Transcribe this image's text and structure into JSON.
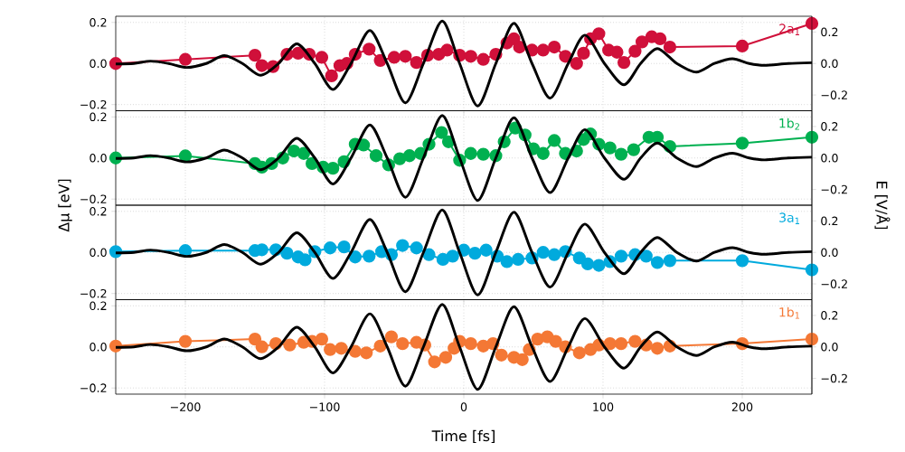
{
  "chart_data": [
    {
      "type": "line",
      "ylabel": "Δμ [eV]",
      "y2label": "E [V/Å]",
      "tick_labels": "y",
      "grid": true,
      "xlim": [
        -250,
        250
      ],
      "xticks": [
        {
          "value": -200,
          "label": null
        },
        {
          "value": -100,
          "label": null
        },
        {
          "value": 0,
          "label": null
        },
        {
          "value": 100,
          "label": null
        },
        {
          "value": 200,
          "label": null
        }
      ],
      "ylim": [
        -0.23,
        0.23
      ],
      "yticks": [
        {
          "value": -0.2,
          "label": "−0.2"
        },
        {
          "value": 0,
          "label": "0.0"
        },
        {
          "value": 0.2,
          "label": "0.2"
        }
      ],
      "y2lim": [
        -0.3,
        0.3
      ],
      "y2ticks": [
        {
          "value": -0.2,
          "label": "−0.2"
        },
        {
          "value": 0,
          "label": "0.0"
        },
        {
          "value": 0.2,
          "label": "0.2"
        }
      ],
      "series": [
        {
          "name": "2a$_{1}$",
          "color": "#d0103a",
          "marker": "circle",
          "x": [
            -250,
            -200,
            -150,
            -145,
            -137,
            -127,
            -119,
            -111,
            -102,
            -95,
            -89,
            -84,
            -78,
            -68,
            -60,
            -50,
            -42,
            -34,
            -26,
            -18,
            -12,
            -3,
            5,
            14,
            23,
            31,
            36,
            40,
            49,
            57,
            65,
            73,
            81,
            86,
            91,
            97,
            104,
            110,
            115,
            123,
            128,
            135,
            141,
            148,
            200,
            250
          ],
          "values": [
            0.0,
            0.02,
            0.04,
            -0.01,
            -0.015,
            0.045,
            0.05,
            0.045,
            0.03,
            -0.06,
            -0.01,
            0.0,
            0.045,
            0.07,
            0.015,
            0.03,
            0.035,
            0.005,
            0.04,
            0.045,
            0.065,
            0.04,
            0.035,
            0.02,
            0.045,
            0.1,
            0.12,
            0.08,
            0.065,
            0.065,
            0.08,
            0.035,
            0.0,
            0.05,
            0.12,
            0.145,
            0.065,
            0.055,
            0.005,
            0.06,
            0.105,
            0.13,
            0.12,
            0.08,
            0.085,
            0.195
          ]
        },
        {
          "color": "#000000",
          "marker": "none",
          "axis": "y2",
          "x": [
            -250,
            -237,
            -225,
            -212,
            -199,
            -185,
            -172,
            -159,
            -146,
            -133,
            -120,
            -107,
            -94,
            -81,
            -67.5,
            -55,
            -42,
            -29,
            -15.5,
            -3,
            10,
            23,
            36,
            49,
            62,
            75,
            87,
            101,
            115,
            127,
            139,
            153,
            167,
            180,
            193,
            205,
            216,
            233,
            250
          ],
          "values": [
            -0.003,
            0,
            0.015,
            0,
            -0.025,
            0,
            0.05,
            0,
            -0.075,
            0,
            0.125,
            0,
            -0.165,
            0,
            0.21,
            0,
            -0.25,
            0,
            0.27,
            0,
            -0.27,
            0,
            0.255,
            0,
            -0.22,
            0,
            0.18,
            0,
            -0.135,
            0,
            0.095,
            0,
            -0.055,
            0,
            0.03,
            0,
            -0.012,
            0,
            0.005
          ]
        }
      ]
    },
    {
      "type": "line",
      "tick_labels": "y",
      "grid": true,
      "xlim": [
        -250,
        250
      ],
      "xticks": [
        {
          "value": -200,
          "label": null
        },
        {
          "value": -100,
          "label": null
        },
        {
          "value": 0,
          "label": null
        },
        {
          "value": 100,
          "label": null
        },
        {
          "value": 200,
          "label": null
        }
      ],
      "ylim": [
        -0.23,
        0.23
      ],
      "yticks": [
        {
          "value": -0.2,
          "label": "−0.2"
        },
        {
          "value": 0,
          "label": "0.0"
        },
        {
          "value": 0.2,
          "label": "0.2"
        }
      ],
      "y2lim": [
        -0.3,
        0.3
      ],
      "y2ticks": [
        {
          "value": -0.2,
          "label": "−0.2"
        },
        {
          "value": 0,
          "label": "0.0"
        },
        {
          "value": 0.2,
          "label": "0.2"
        }
      ],
      "series": [
        {
          "name": "1b$_{2}$",
          "color": "#00b050",
          "marker": "circle",
          "x": [
            -250,
            -200,
            -150,
            -145,
            -138,
            -130,
            -122,
            -115,
            -109,
            -101,
            -94,
            -86,
            -78,
            -72,
            -63,
            -54,
            -46,
            -39,
            -31,
            -25,
            -16,
            -11,
            -3,
            5,
            14,
            23,
            29,
            37,
            44,
            50,
            57,
            65,
            73,
            81,
            86,
            91,
            97,
            105,
            113,
            122,
            133,
            139,
            148,
            200,
            250
          ],
          "values": [
            0,
            0.01,
            -0.027,
            -0.045,
            -0.027,
            0,
            0.034,
            0.022,
            -0.027,
            -0.045,
            -0.05,
            -0.018,
            0.067,
            0.063,
            0.011,
            -0.034,
            -0.004,
            0.011,
            0.022,
            0.067,
            0.124,
            0.079,
            -0.011,
            0.022,
            0.018,
            0.011,
            0.079,
            0.146,
            0.112,
            0.045,
            0.022,
            0.085,
            0.022,
            0.034,
            0.09,
            0.117,
            0.067,
            0.049,
            0.018,
            0.04,
            0.101,
            0.101,
            0.056,
            0.072,
            0.101
          ]
        },
        {
          "color": "#000000",
          "marker": "none",
          "axis": "y2",
          "x": [
            -250,
            -237,
            -225,
            -212,
            -199,
            -185,
            -172,
            -159,
            -146,
            -133,
            -120,
            -107,
            -94,
            -81,
            -67.5,
            -55,
            -42,
            -29,
            -15.5,
            -3,
            10,
            23,
            36,
            49,
            62,
            75,
            87,
            101,
            115,
            127,
            139,
            153,
            167,
            180,
            193,
            205,
            216,
            233,
            250
          ],
          "values": [
            -0.003,
            0,
            0.015,
            0,
            -0.025,
            0,
            0.05,
            0,
            -0.075,
            0,
            0.125,
            0,
            -0.165,
            0,
            0.21,
            0,
            -0.25,
            0,
            0.27,
            0,
            -0.27,
            0,
            0.255,
            0,
            -0.22,
            0,
            0.18,
            0,
            -0.135,
            0,
            0.095,
            0,
            -0.055,
            0,
            0.03,
            0,
            -0.012,
            0,
            0.005
          ]
        }
      ]
    },
    {
      "type": "line",
      "tick_labels": "y",
      "grid": true,
      "xlim": [
        -250,
        250
      ],
      "xticks": [
        {
          "value": -200,
          "label": null
        },
        {
          "value": -100,
          "label": null
        },
        {
          "value": 0,
          "label": null
        },
        {
          "value": 100,
          "label": null
        },
        {
          "value": 200,
          "label": null
        }
      ],
      "ylim": [
        -0.23,
        0.23
      ],
      "yticks": [
        {
          "value": -0.2,
          "label": "−0.2"
        },
        {
          "value": 0,
          "label": "0.0"
        },
        {
          "value": 0.2,
          "label": "0.2"
        }
      ],
      "y2lim": [
        -0.3,
        0.3
      ],
      "y2ticks": [
        {
          "value": -0.2,
          "label": "−0.2"
        },
        {
          "value": 0,
          "label": "0.0"
        },
        {
          "value": 0.2,
          "label": "0.2"
        }
      ],
      "series": [
        {
          "name": "3a$_{1}$",
          "color": "#00aadd",
          "marker": "circle",
          "x": [
            -250,
            -200,
            -150,
            -145,
            -135,
            -127,
            -119,
            -114,
            -107,
            -96,
            -86,
            -78,
            -68,
            -59,
            -52,
            -44,
            -34,
            -25,
            -15,
            -8,
            0,
            8,
            16,
            24,
            31,
            39,
            49,
            57,
            65,
            73,
            83,
            89,
            97,
            105,
            113,
            123,
            131,
            139,
            148,
            200,
            250
          ],
          "values": [
            0.004,
            0.009,
            0.009,
            0.013,
            0.013,
            -0.004,
            -0.022,
            -0.036,
            0.004,
            0.022,
            0.027,
            -0.022,
            -0.018,
            0.004,
            -0.011,
            0.034,
            0.022,
            -0.011,
            -0.034,
            -0.018,
            0.011,
            -0.004,
            0.011,
            -0.018,
            -0.045,
            -0.034,
            -0.027,
            0,
            -0.011,
            0.004,
            -0.027,
            -0.056,
            -0.063,
            -0.045,
            -0.018,
            -0.011,
            -0.018,
            -0.049,
            -0.04,
            -0.04,
            -0.085
          ]
        },
        {
          "color": "#000000",
          "marker": "none",
          "axis": "y2",
          "x": [
            -250,
            -237,
            -225,
            -212,
            -199,
            -185,
            -172,
            -159,
            -146,
            -133,
            -120,
            -107,
            -94,
            -81,
            -67.5,
            -55,
            -42,
            -29,
            -15.5,
            -3,
            10,
            23,
            36,
            49,
            62,
            75,
            87,
            101,
            115,
            127,
            139,
            153,
            167,
            180,
            193,
            205,
            216,
            233,
            250
          ],
          "values": [
            -0.003,
            0,
            0.015,
            0,
            -0.025,
            0,
            0.05,
            0,
            -0.075,
            0,
            0.125,
            0,
            -0.165,
            0,
            0.21,
            0,
            -0.25,
            0,
            0.27,
            0,
            -0.27,
            0,
            0.255,
            0,
            -0.22,
            0,
            0.18,
            0,
            -0.135,
            0,
            0.095,
            0,
            -0.055,
            0,
            0.03,
            0,
            -0.012,
            0,
            0.005
          ]
        }
      ]
    },
    {
      "type": "line",
      "xlabel": "Time [fs]",
      "grid": true,
      "xlim": [
        -250,
        250
      ],
      "xticks": [
        {
          "value": -200,
          "label": "−200"
        },
        {
          "value": -100,
          "label": "−100"
        },
        {
          "value": 0,
          "label": "0"
        },
        {
          "value": 100,
          "label": "100"
        },
        {
          "value": 200,
          "label": "200"
        }
      ],
      "ylim": [
        -0.23,
        0.23
      ],
      "yticks": [
        {
          "value": -0.2,
          "label": "−0.2"
        },
        {
          "value": 0,
          "label": "0.0"
        },
        {
          "value": 0.2,
          "label": "0.2"
        }
      ],
      "y2lim": [
        -0.3,
        0.3
      ],
      "y2ticks": [
        {
          "value": -0.2,
          "label": "−0.2"
        },
        {
          "value": 0,
          "label": "0.0"
        },
        {
          "value": 0.2,
          "label": "0.2"
        }
      ],
      "series": [
        {
          "name": "1b$_{1}$",
          "color": "#f47835",
          "marker": "circle",
          "x": [
            -250,
            -200,
            -150,
            -145,
            -135,
            -125,
            -115,
            -109,
            -102,
            -96,
            -88,
            -78,
            -70,
            -60,
            -52,
            -44,
            -34,
            -28,
            -21,
            -13,
            -7,
            -3,
            5,
            14,
            21,
            27,
            36,
            42,
            47,
            53,
            60,
            66,
            73,
            83,
            91,
            97,
            105,
            113,
            123,
            131,
            139,
            148,
            200,
            250
          ],
          "values": [
            0.004,
            0.027,
            0.038,
            0,
            0.016,
            0.009,
            0.022,
            0.027,
            0.038,
            -0.013,
            -0.007,
            -0.022,
            -0.029,
            0.004,
            0.049,
            0.016,
            0.022,
            0.009,
            -0.073,
            -0.051,
            -0.007,
            0.027,
            0.016,
            0.004,
            0.016,
            -0.04,
            -0.051,
            -0.062,
            -0.013,
            0.038,
            0.049,
            0.027,
            0,
            -0.029,
            -0.013,
            0.009,
            0.016,
            0.016,
            0.027,
            0.009,
            -0.007,
            0.004,
            0.016,
            0.038
          ]
        },
        {
          "color": "#000000",
          "marker": "none",
          "axis": "y2",
          "x": [
            -250,
            -237,
            -225,
            -212,
            -199,
            -185,
            -172,
            -159,
            -146,
            -133,
            -120,
            -107,
            -94,
            -81,
            -67.5,
            -55,
            -42,
            -29,
            -15.5,
            -3,
            10,
            23,
            36,
            49,
            62,
            75,
            87,
            101,
            115,
            127,
            139,
            153,
            167,
            180,
            193,
            205,
            216,
            233,
            250
          ],
          "values": [
            -0.003,
            0,
            0.015,
            0,
            -0.025,
            0,
            0.05,
            0,
            -0.075,
            0,
            0.125,
            0,
            -0.165,
            0,
            0.21,
            0,
            -0.25,
            0,
            0.27,
            0,
            -0.27,
            0,
            0.255,
            0,
            -0.22,
            0,
            0.18,
            0,
            -0.135,
            0,
            0.095,
            0,
            -0.055,
            0,
            0.03,
            0,
            -0.012,
            0,
            0.005
          ]
        }
      ]
    }
  ]
}
